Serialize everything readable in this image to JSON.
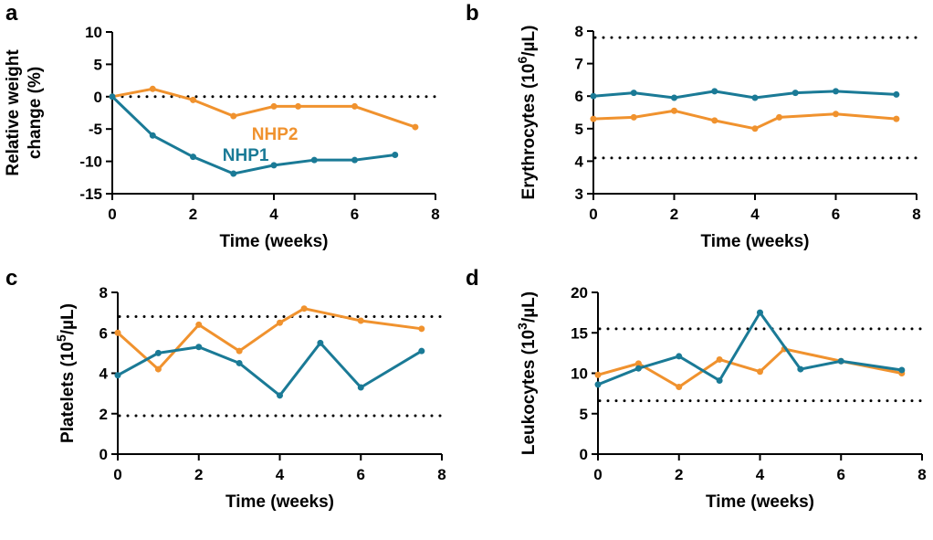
{
  "chart_data": [
    {
      "type": "line",
      "letter": "a",
      "xlabel": "Time (weeks)",
      "ylabel_lines": [
        "Relative weight",
        "change (%)"
      ],
      "xlim": [
        0,
        8
      ],
      "xticks": [
        0,
        2,
        4,
        6,
        8
      ],
      "ylim": [
        -15,
        10
      ],
      "yticks": [
        -15,
        -10,
        -5,
        0,
        5,
        10
      ],
      "reference_lines": [
        0
      ],
      "series": [
        {
          "name": "NHP2",
          "color": "#f0922e",
          "x": [
            0,
            1,
            2,
            3,
            4,
            4.6,
            6,
            7.5
          ],
          "values": [
            0,
            1.2,
            -0.5,
            -3,
            -1.5,
            -1.5,
            -1.5,
            -4.7
          ]
        },
        {
          "name": "NHP1",
          "color": "#1a7a96",
          "x": [
            0,
            1,
            2,
            3,
            4,
            5,
            6,
            7
          ],
          "values": [
            0,
            -6,
            -9.3,
            -11.9,
            -10.6,
            -9.8,
            -9.8,
            -9
          ]
        }
      ]
    },
    {
      "type": "line",
      "letter": "b",
      "xlabel": "Time (weeks)",
      "ylabel_parts": [
        "Erythrocytes (10",
        "6",
        "/µL)"
      ],
      "xlim": [
        0,
        8
      ],
      "xticks": [
        0,
        2,
        4,
        6,
        8
      ],
      "ylim": [
        3,
        8
      ],
      "yticks": [
        3,
        4,
        5,
        6,
        7,
        8
      ],
      "reference_lines": [
        7.8,
        4.1
      ],
      "series": [
        {
          "color": "#f0922e",
          "x": [
            0,
            1,
            2,
            3,
            4,
            4.6,
            6,
            7.5
          ],
          "values": [
            5.3,
            5.35,
            5.55,
            5.25,
            5.0,
            5.35,
            5.45,
            5.3
          ]
        },
        {
          "color": "#1a7a96",
          "x": [
            0,
            1,
            2,
            3,
            4,
            5,
            6,
            7.5
          ],
          "values": [
            6.0,
            6.1,
            5.95,
            6.15,
            5.95,
            6.1,
            6.15,
            6.05
          ]
        }
      ]
    },
    {
      "type": "line",
      "letter": "c",
      "xlabel": "Time (weeks)",
      "ylabel_parts": [
        "Platelets (10",
        "5",
        "/µL)"
      ],
      "xlim": [
        0,
        8
      ],
      "xticks": [
        0,
        2,
        4,
        6,
        8
      ],
      "ylim": [
        0,
        8
      ],
      "yticks": [
        0,
        2,
        4,
        6,
        8
      ],
      "reference_lines": [
        6.8,
        1.9
      ],
      "series": [
        {
          "color": "#f0922e",
          "x": [
            0,
            1,
            2,
            3,
            4,
            4.6,
            6,
            7.5
          ],
          "values": [
            6.0,
            4.2,
            6.4,
            5.1,
            6.5,
            7.2,
            6.6,
            6.2
          ]
        },
        {
          "color": "#1a7a96",
          "x": [
            0,
            1,
            2,
            3,
            4,
            5,
            6,
            7.5
          ],
          "values": [
            3.9,
            5.0,
            5.3,
            4.5,
            2.9,
            5.5,
            3.3,
            5.1
          ]
        }
      ]
    },
    {
      "type": "line",
      "letter": "d",
      "xlabel": "Time (weeks)",
      "ylabel_parts": [
        "Leukocytes (10",
        "3",
        "/µL)"
      ],
      "xlim": [
        0,
        8
      ],
      "xticks": [
        0,
        2,
        4,
        6,
        8
      ],
      "ylim": [
        0,
        20
      ],
      "yticks": [
        0,
        5,
        10,
        15,
        20
      ],
      "reference_lines": [
        15.5,
        6.6
      ],
      "series": [
        {
          "color": "#f0922e",
          "x": [
            0,
            1,
            2,
            3,
            4,
            4.6,
            6,
            7.5
          ],
          "values": [
            9.8,
            11.2,
            8.3,
            11.7,
            10.2,
            13,
            11.5,
            10
          ]
        },
        {
          "color": "#1a7a96",
          "x": [
            0,
            1,
            2,
            3,
            4,
            5,
            6,
            7.5
          ],
          "values": [
            8.6,
            10.6,
            12.1,
            9.1,
            17.5,
            10.5,
            11.5,
            10.4
          ]
        }
      ]
    }
  ]
}
